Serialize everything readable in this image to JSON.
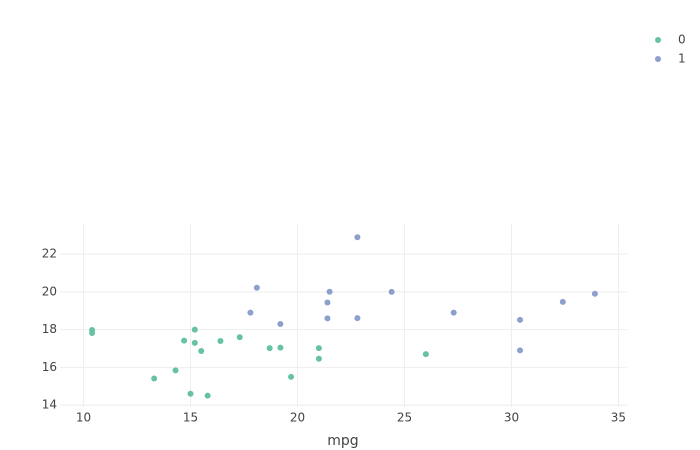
{
  "chart_data": {
    "type": "scatter",
    "x_label": "mpg",
    "series": [
      {
        "name": "0",
        "color": "#66c2a5",
        "x": [
          21.0,
          21.0,
          18.7,
          14.3,
          16.4,
          17.3,
          15.2,
          10.4,
          10.4,
          14.7,
          15.5,
          15.2,
          13.3,
          19.2,
          26.0,
          15.8,
          19.7,
          15.0
        ],
        "y": [
          16.46,
          17.02,
          17.02,
          15.84,
          17.4,
          17.6,
          18.0,
          17.98,
          17.82,
          17.42,
          16.87,
          17.3,
          15.41,
          17.05,
          16.7,
          14.5,
          15.5,
          14.6
        ]
      },
      {
        "name": "1",
        "color": "#8da0cb",
        "x": [
          22.8,
          21.4,
          18.1,
          24.4,
          22.8,
          19.2,
          17.8,
          32.4,
          30.4,
          33.9,
          21.5,
          27.3,
          30.4,
          21.4
        ],
        "y": [
          18.61,
          19.44,
          20.22,
          20.0,
          22.9,
          18.3,
          18.9,
          19.47,
          18.52,
          19.9,
          20.01,
          18.9,
          16.9,
          18.6
        ]
      }
    ],
    "xlim": [
      8.9,
      35.4
    ],
    "ylim": [
      13.9,
      23.6
    ],
    "xticks": [
      10,
      15,
      20,
      25,
      30,
      35
    ],
    "yticks": [
      14,
      16,
      18,
      20,
      22
    ],
    "grid": true,
    "legend": "top-right"
  }
}
